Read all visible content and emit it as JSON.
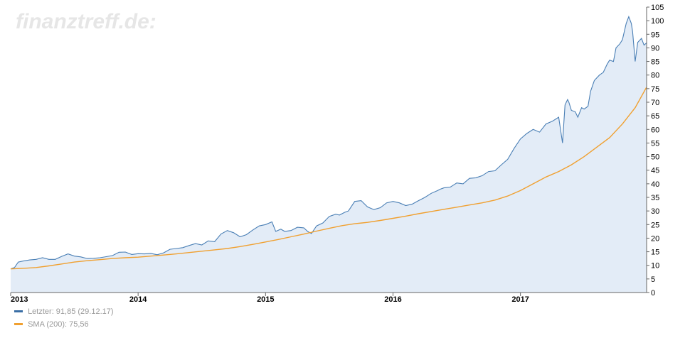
{
  "watermark": "finanztreff.de:",
  "colors": {
    "price": "#4a7fb5",
    "sma": "#f0a030",
    "fill": "#e3ecf7",
    "axis": "#666666"
  },
  "legend": {
    "items": [
      {
        "label": "Letzter: 91,85 (29.12.17)",
        "color": "#3a6ea5"
      },
      {
        "label": "SMA (200): 75,56",
        "color": "#f0a030"
      }
    ]
  },
  "chart_data": {
    "type": "line",
    "xlim": [
      2013.0,
      2017.99
    ],
    "ylim": [
      0,
      105
    ],
    "yticks": [
      0,
      5,
      10,
      15,
      20,
      25,
      30,
      35,
      40,
      45,
      50,
      55,
      60,
      65,
      70,
      75,
      80,
      85,
      90,
      95,
      100,
      105
    ],
    "xticks": [
      "2013",
      "2014",
      "2015",
      "2016",
      "2017"
    ],
    "grid": false,
    "legend_position": "bottom-left",
    "series": [
      {
        "name": "Letzter",
        "area": true,
        "x": [
          2013.0,
          2013.03,
          2013.06,
          2013.1,
          2013.15,
          2013.2,
          2013.25,
          2013.3,
          2013.35,
          2013.4,
          2013.45,
          2013.5,
          2013.55,
          2013.6,
          2013.65,
          2013.7,
          2013.75,
          2013.8,
          2013.85,
          2013.9,
          2013.95,
          2014.0,
          2014.05,
          2014.1,
          2014.15,
          2014.2,
          2014.25,
          2014.3,
          2014.35,
          2014.4,
          2014.45,
          2014.5,
          2014.55,
          2014.6,
          2014.65,
          2014.7,
          2014.75,
          2014.8,
          2014.85,
          2014.9,
          2014.95,
          2015.0,
          2015.05,
          2015.08,
          2015.12,
          2015.15,
          2015.2,
          2015.25,
          2015.3,
          2015.33,
          2015.36,
          2015.4,
          2015.45,
          2015.5,
          2015.55,
          2015.58,
          2015.62,
          2015.65,
          2015.7,
          2015.75,
          2015.8,
          2015.85,
          2015.9,
          2015.95,
          2016.0,
          2016.05,
          2016.1,
          2016.15,
          2016.2,
          2016.25,
          2016.3,
          2016.35,
          2016.37,
          2016.4,
          2016.45,
          2016.5,
          2016.55,
          2016.6,
          2016.65,
          2016.7,
          2016.75,
          2016.8,
          2016.85,
          2016.9,
          2016.95,
          2017.0,
          2017.05,
          2017.1,
          2017.15,
          2017.2,
          2017.25,
          2017.3,
          2017.33,
          2017.35,
          2017.37,
          2017.38,
          2017.4,
          2017.43,
          2017.45,
          2017.48,
          2017.5,
          2017.53,
          2017.55,
          2017.58,
          2017.6,
          2017.62,
          2017.65,
          2017.68,
          2017.7,
          2017.73,
          2017.75,
          2017.78,
          2017.8,
          2017.83,
          2017.85,
          2017.87,
          2017.88,
          2017.9,
          2017.92,
          2017.95,
          2017.97,
          2017.99
        ],
        "values": [
          8.7,
          9.2,
          11.2,
          11.6,
          12.0,
          12.2,
          12.8,
          12.2,
          12.2,
          13.3,
          14.2,
          13.4,
          13.1,
          12.5,
          12.6,
          12.8,
          13.2,
          13.6,
          14.8,
          14.9,
          14.0,
          14.3,
          14.2,
          14.4,
          13.9,
          14.6,
          15.9,
          16.2,
          16.5,
          17.3,
          18.0,
          17.5,
          19.0,
          18.7,
          21.5,
          22.8,
          22.0,
          20.5,
          21.3,
          23.0,
          24.5,
          25.0,
          26.0,
          22.5,
          23.3,
          22.5,
          22.8,
          24.0,
          23.8,
          22.5,
          21.7,
          24.5,
          25.6,
          28.0,
          28.8,
          28.5,
          29.5,
          30.0,
          33.5,
          33.8,
          31.5,
          30.5,
          31.2,
          33.0,
          33.5,
          33.0,
          32.0,
          32.5,
          33.8,
          35.0,
          36.5,
          37.5,
          38.0,
          38.5,
          38.8,
          40.3,
          40.0,
          42.0,
          42.2,
          43.0,
          44.5,
          44.8,
          47.0,
          49.0,
          53.0,
          56.5,
          58.5,
          60.0,
          59.0,
          62.0,
          63.0,
          64.5,
          55.0,
          69.0,
          71.0,
          70.0,
          67.0,
          66.5,
          64.5,
          68.0,
          67.5,
          68.5,
          74.0,
          78.0,
          79.0,
          80.0,
          81.0,
          84.0,
          85.5,
          85.0,
          90.0,
          91.5,
          93.0,
          99.0,
          101.5,
          99.0,
          96.0,
          85.0,
          92.0,
          93.5,
          91.0,
          91.85
        ]
      },
      {
        "name": "SMA (200)",
        "area": false,
        "x": [
          2013.0,
          2013.1,
          2013.2,
          2013.3,
          2013.4,
          2013.5,
          2013.6,
          2013.7,
          2013.8,
          2013.9,
          2014.0,
          2014.1,
          2014.2,
          2014.3,
          2014.4,
          2014.5,
          2014.6,
          2014.7,
          2014.8,
          2014.9,
          2015.0,
          2015.1,
          2015.2,
          2015.3,
          2015.4,
          2015.5,
          2015.6,
          2015.7,
          2015.8,
          2015.9,
          2016.0,
          2016.1,
          2016.2,
          2016.3,
          2016.4,
          2016.5,
          2016.6,
          2016.7,
          2016.8,
          2016.9,
          2017.0,
          2017.1,
          2017.2,
          2017.3,
          2017.4,
          2017.5,
          2017.6,
          2017.7,
          2017.8,
          2017.9,
          2017.99
        ],
        "values": [
          8.7,
          8.9,
          9.2,
          9.8,
          10.5,
          11.2,
          11.7,
          12.1,
          12.5,
          12.8,
          13.0,
          13.4,
          13.8,
          14.2,
          14.7,
          15.2,
          15.7,
          16.2,
          16.9,
          17.7,
          18.6,
          19.5,
          20.5,
          21.5,
          22.6,
          23.6,
          24.6,
          25.3,
          25.8,
          26.5,
          27.3,
          28.1,
          29.0,
          29.8,
          30.6,
          31.4,
          32.2,
          33.0,
          34.0,
          35.5,
          37.5,
          40.0,
          42.5,
          44.5,
          47.0,
          50.0,
          53.5,
          57.0,
          62.0,
          68.0,
          75.56
        ]
      }
    ]
  }
}
